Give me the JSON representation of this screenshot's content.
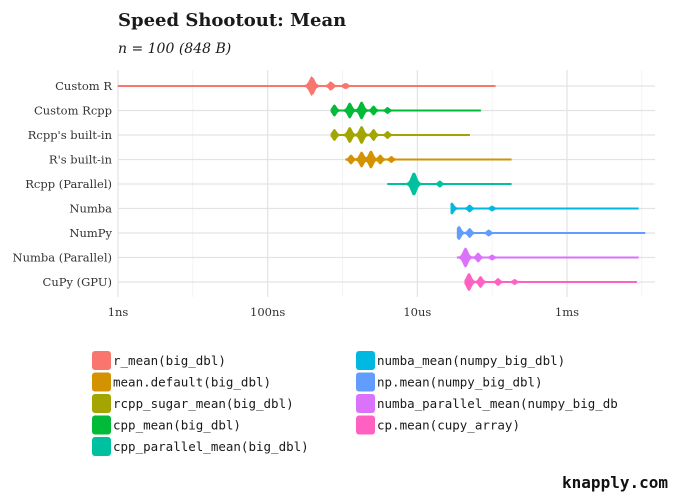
{
  "chart_data": {
    "type": "violin",
    "title": "Speed Shootout: Mean",
    "subtitle": "n = 100 (848 B)",
    "xlabel": "",
    "ylabel": "",
    "x_scale": "log10",
    "x_unit": "seconds",
    "xlim": [
      1e-09,
      0.015
    ],
    "x_ticks": [
      {
        "value": 1e-09,
        "label": "1ns"
      },
      {
        "value": 1e-07,
        "label": "100ns"
      },
      {
        "value": 1e-05,
        "label": "10us"
      },
      {
        "value": 0.001,
        "label": "1ms"
      }
    ],
    "grid": true,
    "legend_position": "bottom",
    "categories": [
      "Custom R",
      "Custom Rcpp",
      "Rcpp's built-in",
      "R's built-in",
      "Rcpp (Parallel)",
      "Numba",
      "NumPy",
      "Numba (Parallel)",
      "CuPy (GPU)"
    ],
    "series": [
      {
        "category": "Custom R",
        "name": "r_mean(big_dbl)",
        "color": "#F8766D",
        "min": 1e-09,
        "max": 0.00011,
        "modes": [
          {
            "x": 3.9e-07,
            "h": 9
          },
          {
            "x": 7e-07,
            "h": 4
          },
          {
            "x": 1.1e-06,
            "h": 2.5
          }
        ]
      },
      {
        "category": "Custom Rcpp",
        "name": "cpp_mean(big_dbl)",
        "color": "#00BA38",
        "min": 7e-07,
        "max": 7e-05,
        "modes": [
          {
            "x": 7.8e-07,
            "h": 5
          },
          {
            "x": 1.25e-06,
            "h": 7
          },
          {
            "x": 1.8e-06,
            "h": 8
          },
          {
            "x": 2.6e-06,
            "h": 4
          },
          {
            "x": 4e-06,
            "h": 2.5
          }
        ]
      },
      {
        "category": "Rcpp's built-in",
        "name": "rcpp_sugar_mean(big_dbl)",
        "color": "#A3A500",
        "min": 7e-07,
        "max": 5e-05,
        "modes": [
          {
            "x": 7.8e-07,
            "h": 5
          },
          {
            "x": 1.25e-06,
            "h": 7
          },
          {
            "x": 1.8e-06,
            "h": 8
          },
          {
            "x": 2.6e-06,
            "h": 5
          },
          {
            "x": 4e-06,
            "h": 3
          }
        ]
      },
      {
        "category": "R's built-in",
        "name": "mean.default(big_dbl)",
        "color": "#D39200",
        "min": 1.1e-06,
        "max": 0.00018,
        "modes": [
          {
            "x": 1.3e-06,
            "h": 4
          },
          {
            "x": 1.8e-06,
            "h": 7
          },
          {
            "x": 2.4e-06,
            "h": 8
          },
          {
            "x": 3.2e-06,
            "h": 4
          },
          {
            "x": 4.5e-06,
            "h": 2.5
          }
        ]
      },
      {
        "category": "Rcpp (Parallel)",
        "name": "cpp_parallel_mean(big_dbl)",
        "color": "#00C19F",
        "min": 4e-06,
        "max": 0.00018,
        "modes": [
          {
            "x": 9e-06,
            "h": 11
          },
          {
            "x": 2e-05,
            "h": 2.5
          }
        ]
      },
      {
        "category": "Numba",
        "name": "numba_mean(numpy_big_dbl)",
        "color": "#00B9E3",
        "min": 2.8e-05,
        "max": 0.009,
        "modes": [
          {
            "x": 2.9e-05,
            "h": 5
          },
          {
            "x": 5e-05,
            "h": 3
          },
          {
            "x": 0.0001,
            "h": 2
          }
        ]
      },
      {
        "category": "NumPy",
        "name": "np.mean(numpy_big_dbl)",
        "color": "#619CFF",
        "min": 3.4e-05,
        "max": 0.011,
        "modes": [
          {
            "x": 3.6e-05,
            "h": 6
          },
          {
            "x": 5e-05,
            "h": 4
          },
          {
            "x": 9e-05,
            "h": 2.5
          }
        ]
      },
      {
        "category": "Numba (Parallel)",
        "name": "numba_parallel_mean(numpy_big_db",
        "color": "#DB72FB",
        "min": 3.4e-05,
        "max": 0.009,
        "modes": [
          {
            "x": 4.4e-05,
            "h": 9
          },
          {
            "x": 6.5e-05,
            "h": 4
          },
          {
            "x": 0.0001,
            "h": 2
          }
        ]
      },
      {
        "category": "CuPy (GPU)",
        "name": "cp.mean(cupy_array)",
        "color": "#FF61C3",
        "min": 4.3e-05,
        "max": 0.0085,
        "modes": [
          {
            "x": 4.9e-05,
            "h": 8
          },
          {
            "x": 7e-05,
            "h": 5
          },
          {
            "x": 0.00012,
            "h": 3
          },
          {
            "x": 0.0002,
            "h": 2
          }
        ]
      }
    ],
    "legend": [
      {
        "label": "r_mean(big_dbl)",
        "color": "#F8766D"
      },
      {
        "label": "mean.default(big_dbl)",
        "color": "#D39200"
      },
      {
        "label": "rcpp_sugar_mean(big_dbl)",
        "color": "#A3A500"
      },
      {
        "label": "cpp_mean(big_dbl)",
        "color": "#00BA38"
      },
      {
        "label": "cpp_parallel_mean(big_dbl)",
        "color": "#00C19F"
      },
      {
        "label": "numba_mean(numpy_big_dbl)",
        "color": "#00B9E3"
      },
      {
        "label": "np.mean(numpy_big_dbl)",
        "color": "#619CFF"
      },
      {
        "label": "numba_parallel_mean(numpy_big_db",
        "color": "#DB72FB"
      },
      {
        "label": "cp.mean(cupy_array)",
        "color": "#FF61C3"
      }
    ]
  },
  "brand": "knapply.com"
}
